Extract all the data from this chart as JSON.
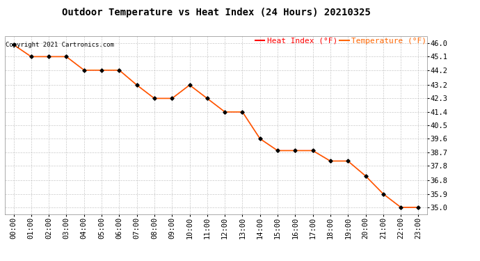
{
  "title": "Outdoor Temperature vs Heat Index (24 Hours) 20210325",
  "copyright": "Copyright 2021 Cartronics.com",
  "legend_heat": "Heat Index (°F)",
  "legend_temp": "Temperature (°F)",
  "x_labels": [
    "00:00",
    "01:00",
    "02:00",
    "03:00",
    "04:00",
    "05:00",
    "06:00",
    "07:00",
    "08:00",
    "09:00",
    "10:00",
    "11:00",
    "12:00",
    "13:00",
    "14:00",
    "15:00",
    "16:00",
    "17:00",
    "18:00",
    "19:00",
    "20:00",
    "21:00",
    "22:00",
    "23:00"
  ],
  "heat_index": [
    45.9,
    45.1,
    45.1,
    45.1,
    44.2,
    44.2,
    44.2,
    43.2,
    42.3,
    42.3,
    43.2,
    42.3,
    41.4,
    41.4,
    39.6,
    38.8,
    38.8,
    38.8,
    38.1,
    38.1,
    37.1,
    35.9,
    35.0,
    35.0
  ],
  "temperature": [
    45.9,
    45.1,
    45.1,
    45.1,
    44.2,
    44.2,
    44.2,
    43.2,
    42.3,
    42.3,
    43.2,
    42.3,
    41.4,
    41.4,
    39.6,
    38.8,
    38.8,
    38.8,
    38.1,
    38.1,
    37.1,
    35.9,
    35.0,
    35.0
  ],
  "ylim_min": 34.55,
  "ylim_max": 46.45,
  "yticks": [
    35.0,
    35.9,
    36.8,
    37.8,
    38.7,
    39.6,
    40.5,
    41.4,
    42.3,
    43.2,
    44.2,
    45.1,
    46.0
  ],
  "heat_color": "#ff0000",
  "temp_color": "#ff6600",
  "marker_color": "#000000",
  "background_color": "#ffffff",
  "grid_color": "#bbbbbb",
  "title_fontsize": 10,
  "tick_fontsize": 7.5,
  "legend_fontsize": 8,
  "copyright_fontsize": 6.5
}
